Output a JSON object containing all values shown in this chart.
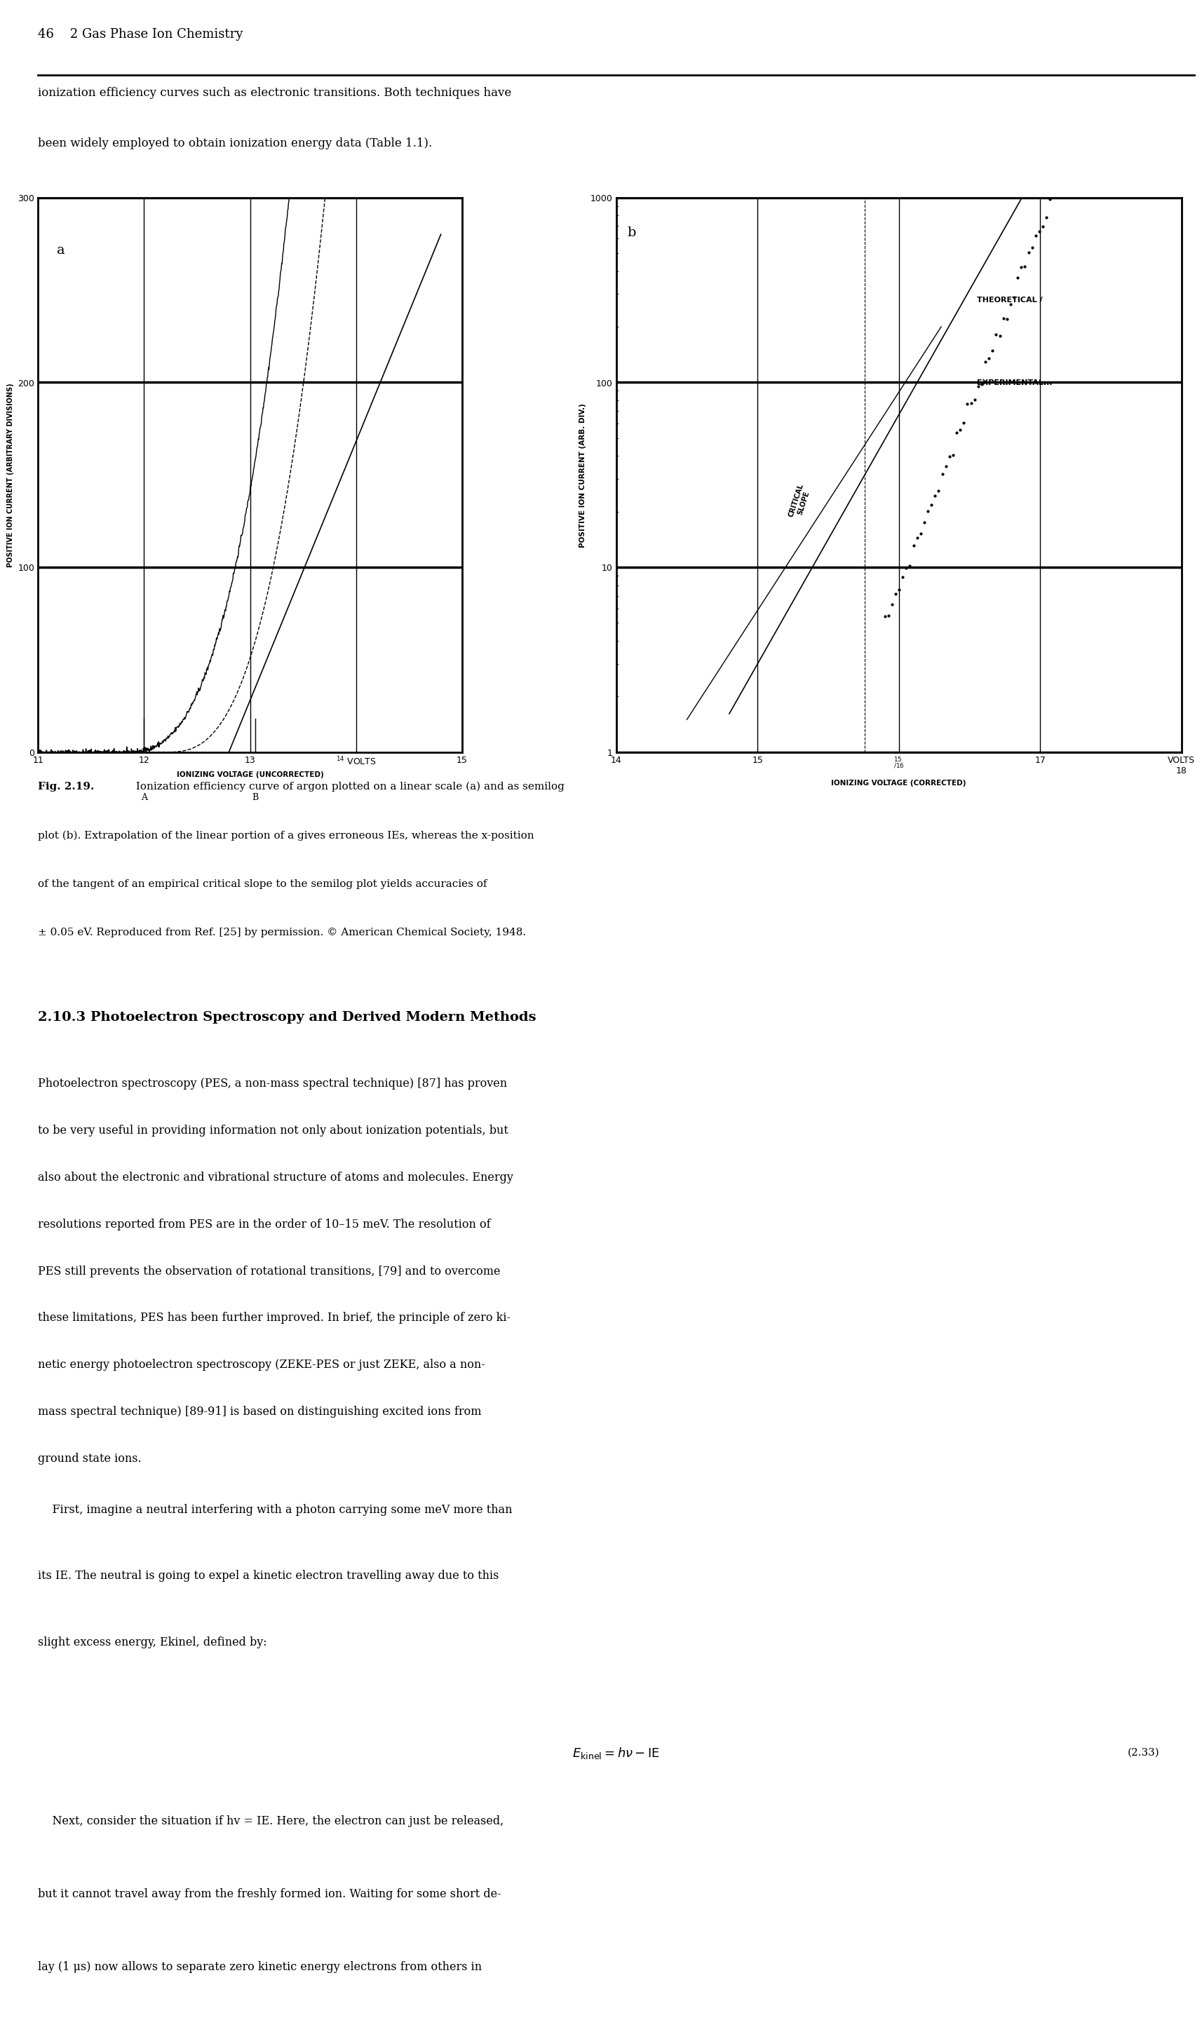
{
  "page_header": "46    2 Gas Phase Ion Chemistry",
  "intro_text": "ionization efficiency curves such as electronic transitions. Both techniques have\nbeen widely employed to obtain ionization energy data (Table 1.1).",
  "fig_label_a": "a",
  "fig_label_b": "b",
  "plot_a": {
    "xlabel": "IONIZING VOLTAGE (UNCORRECTED)",
    "ylabel": "POSITIVE ION CURRENT (ARBITRARY DIVISIONS)",
    "xlim": [
      11,
      15
    ],
    "ylim": [
      0,
      300
    ],
    "xticks": [
      11,
      12,
      13,
      14,
      15
    ],
    "yticks": [
      0,
      100,
      200,
      300
    ],
    "grid": true
  },
  "plot_b": {
    "xlabel": "IONIZING VOLTAGE (CORRECTED)",
    "ylabel": "POSITIVE ION CURRENT (ARB. DIV.)",
    "xlim": [
      14,
      18
    ],
    "ylim_log": [
      1,
      1000
    ],
    "xticks": [
      14,
      15,
      16,
      17,
      18
    ],
    "yticks_log": [
      1,
      10,
      100,
      1000
    ],
    "grid": true,
    "annotations": [
      "CRITICAL SLOPE",
      "THEORETICAL /",
      "EXPERIMENTAL ..."
    ]
  },
  "caption_bold": "Fig. 2.19.",
  "caption_text": " Ionization efficiency curve of argon plotted on a linear scale (a) and as semilog\nplot (b). Extrapolation of the linear portion of a gives erroneous IEs, whereas the x-position\nof the tangent of an empirical critical slope to the semilog plot yields accuracies of\n± 0.05 eV. Reproduced from Ref. [25] by permission. © American Chemical Society, 1948.",
  "section_header": "2.10.3 Photoelectron Spectroscopy and Derived Modern Methods",
  "body_text": "Photoelectron spectroscopy (PES, a non-mass spectral technique) [87] has proven\nto be very useful in providing information not only about ionization potentials, but\nalso about the electronic and vibrational structure of atoms and molecules. Energy\nresolutions reported from PES are in the order of 10–15 meV. The resolution of\nPES still prevents the observation of rotational transitions, [79] and to overcome\nthese limitations, PES has been further improved. In brief, the principle of zero ki-\nnetic energy photoelectron spectroscopy (ZEKE-PES or just ZEKE, also a non-\nmass spectral technique) [89-91] is based on distinguishing excited ions from\nground state ions.",
  "body_text2": "    First, imagine a neutral interfering with a photon carrying some meV more than\nits IE. The neutral is going to expel a kinetic electron travelling away due to this\nslight excess energy, Ekinel, defined by:",
  "equation": "Ekinel = hv - IE",
  "eq_number": "(2.33)",
  "body_text3": "    Next, consider the situation if hv = IE. Here, the electron can just be released,\nbut it cannot travel away from the freshly formed ion. Waiting for some short de-\nlay (1 μs) now allows to separate zero kinetic energy electrons from others in",
  "background_color": "#ffffff",
  "text_color": "#000000",
  "line_color": "#000000"
}
